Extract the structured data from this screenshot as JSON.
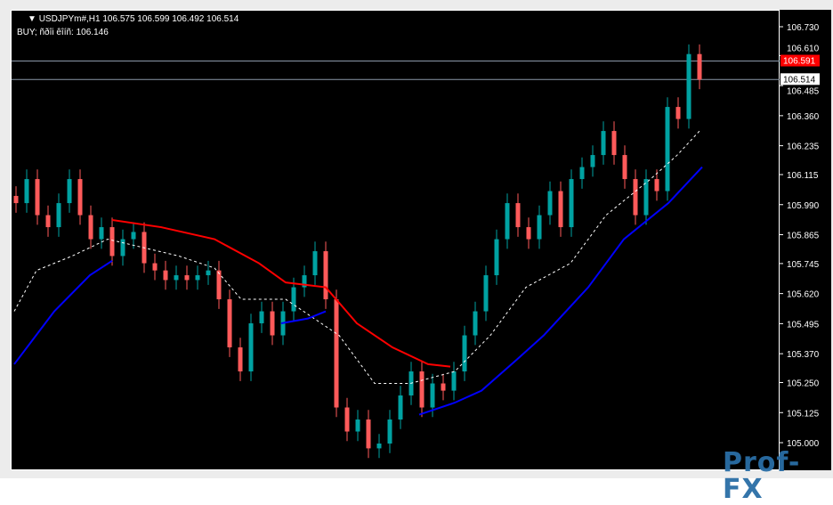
{
  "header": {
    "symbol_line": "USDJPYm#,H1  106.575 106.599 106.492 106.514",
    "buy_line": "BUY; ñðîi êîíñ: 106.146"
  },
  "logo": "Prof-FX",
  "colors": {
    "bull": "#00a2a2",
    "bear": "#ff5a5a",
    "ma_red": "#ff0000",
    "ma_blue": "#0000ff",
    "dashed": "#ffffff",
    "bid_label": "#ff0000"
  },
  "chart_data": {
    "type": "candlestick",
    "symbol": "USDJPYm#",
    "timeframe": "H1",
    "ylim": [
      104.93,
      106.8
    ],
    "y_ticks": [
      "106.730",
      "106.610",
      "106.485",
      "106.360",
      "106.235",
      "106.115",
      "105.990",
      "105.865",
      "105.745",
      "105.620",
      "105.495",
      "105.370",
      "105.250",
      "105.125",
      "105.000"
    ],
    "closes": [
      106.0,
      106.1,
      105.95,
      105.9,
      106.0,
      106.1,
      105.95,
      105.85,
      105.9,
      105.78,
      105.85,
      105.88,
      105.75,
      105.72,
      105.68,
      105.7,
      105.68,
      105.7,
      105.72,
      105.6,
      105.4,
      105.3,
      105.5,
      105.55,
      105.45,
      105.55,
      105.65,
      105.7,
      105.8,
      105.6,
      105.15,
      105.05,
      105.1,
      104.98,
      105.0,
      105.1,
      105.2,
      105.3,
      105.15,
      105.25,
      105.22,
      105.3,
      105.45,
      105.55,
      105.7,
      105.85,
      106.0,
      105.9,
      105.85,
      105.95,
      106.05,
      105.9,
      106.1,
      106.15,
      106.2,
      106.3,
      106.2,
      106.1,
      105.95,
      106.1,
      106.05,
      106.4,
      106.35,
      106.62,
      106.514
    ],
    "price_lines": [
      {
        "label": "106.591",
        "kind": "ask"
      },
      {
        "label": "106.514",
        "kind": "bid"
      }
    ],
    "red_ma": [
      [
        125,
        105.93
      ],
      [
        180,
        105.9
      ],
      [
        240,
        105.85
      ],
      [
        290,
        105.75
      ],
      [
        320,
        105.67
      ],
      [
        365,
        105.65
      ],
      [
        400,
        105.5
      ],
      [
        440,
        105.4
      ],
      [
        480,
        105.33
      ],
      [
        505,
        105.32
      ]
    ],
    "blue_ma": [
      [
        [
          15,
          105.33
        ],
        [
          60,
          105.55
        ],
        [
          100,
          105.7
        ],
        [
          125,
          105.76
        ]
      ],
      [
        [
          315,
          105.5
        ],
        [
          345,
          105.52
        ],
        [
          365,
          105.55
        ]
      ],
      [
        [
          470,
          105.12
        ],
        [
          510,
          105.17
        ],
        [
          540,
          105.22
        ],
        [
          580,
          105.35
        ],
        [
          610,
          105.45
        ],
        [
          660,
          105.65
        ],
        [
          700,
          105.85
        ],
        [
          750,
          106.0
        ],
        [
          788,
          106.15
        ]
      ]
    ],
    "dashed_ma": [
      [
        15,
        105.55
      ],
      [
        40,
        105.72
      ],
      [
        80,
        105.78
      ],
      [
        120,
        105.85
      ],
      [
        200,
        105.78
      ],
      [
        240,
        105.73
      ],
      [
        270,
        105.6
      ],
      [
        320,
        105.6
      ],
      [
        380,
        105.45
      ],
      [
        420,
        105.25
      ],
      [
        460,
        105.25
      ],
      [
        510,
        105.3
      ],
      [
        550,
        105.45
      ],
      [
        590,
        105.65
      ],
      [
        640,
        105.75
      ],
      [
        680,
        105.95
      ],
      [
        730,
        106.1
      ],
      [
        760,
        106.2
      ],
      [
        785,
        106.3
      ]
    ]
  }
}
